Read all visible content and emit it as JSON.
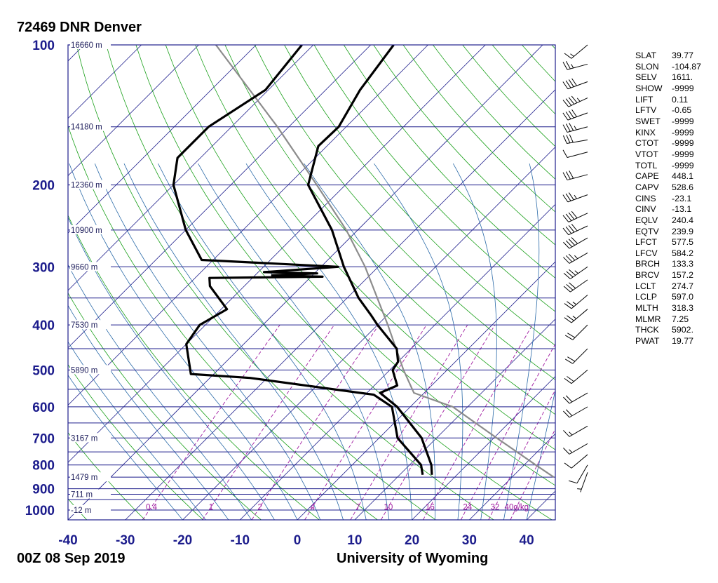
{
  "station_title": "72469 DNR Denver",
  "time_label": "00Z 08 Sep 2019",
  "credit": "University of Wyoming",
  "colors": {
    "axis_text": "#1c1c8c",
    "isobar": "#1e1e8c",
    "isotherm": "#1e1e8c",
    "dry_adiabat": "#1aa01a",
    "moist_adiabat": "#2a6aa8",
    "mixing_ratio": "#a01aa0",
    "sounding": "#000000",
    "parcel": "#8c8c8c"
  },
  "chart_data": {
    "type": "skew-t log-p sounding",
    "xlabel": "",
    "ylabel": "",
    "xlim": [
      -40,
      45
    ],
    "ylim_hPa": [
      1050,
      100
    ],
    "x_ticks": [
      "-40",
      "-30",
      "-20",
      "-10",
      "0",
      "10",
      "20",
      "30",
      "40"
    ],
    "pressure_ticks": [
      "100",
      "200",
      "300",
      "400",
      "500",
      "600",
      "700",
      "800",
      "900",
      "1000"
    ],
    "isobars_hPa": [
      100,
      150,
      200,
      250,
      300,
      350,
      400,
      450,
      500,
      550,
      600,
      650,
      700,
      750,
      800,
      850,
      900,
      925,
      950,
      1000
    ],
    "height_labels": [
      {
        "p": 100,
        "text": "16660 m"
      },
      {
        "p": 150,
        "text": "14180 m"
      },
      {
        "p": 200,
        "text": "12360 m"
      },
      {
        "p": 250,
        "text": "10900 m"
      },
      {
        "p": 300,
        "text": "9660 m"
      },
      {
        "p": 400,
        "text": "7530 m"
      },
      {
        "p": 500,
        "text": "5890 m"
      },
      {
        "p": 700,
        "text": "3167 m"
      },
      {
        "p": 850,
        "text": "1479 m"
      },
      {
        "p": 925,
        "text": "711 m"
      },
      {
        "p": 1000,
        "text": "-12 m"
      }
    ],
    "mixing_ratio_labels": [
      "0.4",
      "1",
      "2",
      "4",
      "7",
      "10",
      "16",
      "24",
      "32",
      "40g/kg"
    ],
    "temperature_profile": [
      {
        "p": 840,
        "t": 15.6
      },
      {
        "p": 800,
        "t": 13.8
      },
      {
        "p": 700,
        "t": 7.4
      },
      {
        "p": 600,
        "t": -2.3
      },
      {
        "p": 560,
        "t": -7.7
      },
      {
        "p": 540,
        "t": -6.0
      },
      {
        "p": 500,
        "t": -9.5
      },
      {
        "p": 480,
        "t": -10.0
      },
      {
        "p": 450,
        "t": -12.5
      },
      {
        "p": 400,
        "t": -20.0
      },
      {
        "p": 380,
        "t": -23.0
      },
      {
        "p": 350,
        "t": -28.0
      },
      {
        "p": 300,
        "t": -36.0
      },
      {
        "p": 250,
        "t": -44.5
      },
      {
        "p": 200,
        "t": -56.5
      },
      {
        "p": 165,
        "t": -61.5
      },
      {
        "p": 150,
        "t": -61.3
      },
      {
        "p": 125,
        "t": -64.0
      },
      {
        "p": 100,
        "t": -66.0
      }
    ],
    "dewpoint_profile": [
      {
        "p": 840,
        "td": 14.0
      },
      {
        "p": 800,
        "td": 12.0
      },
      {
        "p": 700,
        "td": 3.2
      },
      {
        "p": 600,
        "td": -3.2
      },
      {
        "p": 565,
        "td": -8.5
      },
      {
        "p": 520,
        "td": -33.0
      },
      {
        "p": 510,
        "td": -44.0
      },
      {
        "p": 440,
        "td": -50.0
      },
      {
        "p": 400,
        "td": -51.0
      },
      {
        "p": 370,
        "td": -49.0
      },
      {
        "p": 330,
        "td": -56.0
      },
      {
        "p": 317,
        "td": -57.5
      },
      {
        "p": 315,
        "td": -38.0
      },
      {
        "p": 313,
        "td": -47.0
      },
      {
        "p": 310,
        "td": -39.5
      },
      {
        "p": 308,
        "td": -49.0
      },
      {
        "p": 300,
        "td": -37.0
      },
      {
        "p": 290,
        "td": -62.0
      },
      {
        "p": 250,
        "td": -70.0
      },
      {
        "p": 200,
        "td": -80.0
      },
      {
        "p": 175,
        "td": -84.0
      },
      {
        "p": 150,
        "td": -84.0
      },
      {
        "p": 125,
        "td": -80.5
      },
      {
        "p": 100,
        "td": -82.0
      }
    ],
    "parcel_profile": [
      {
        "p": 850,
        "t": 37.3
      },
      {
        "p": 800,
        "t": 32.0
      },
      {
        "p": 700,
        "t": 20.5
      },
      {
        "p": 600,
        "t": 7.4
      },
      {
        "p": 560,
        "t": -1.8
      },
      {
        "p": 500,
        "t": -7.6
      },
      {
        "p": 400,
        "t": -18.2
      },
      {
        "p": 300,
        "t": -32.3
      },
      {
        "p": 250,
        "t": -42.0
      },
      {
        "p": 200,
        "t": -55.0
      },
      {
        "p": 150,
        "t": -72.0
      },
      {
        "p": 100,
        "t": -97.0
      }
    ],
    "wind_barbs_note": "wind barbs plotted along right side from surface to 100 hPa",
    "wind_barbs": [
      {
        "p": 830,
        "dir": 200,
        "kt": 5
      },
      {
        "p": 800,
        "dir": 210,
        "kt": 10
      },
      {
        "p": 760,
        "dir": 230,
        "kt": 10
      },
      {
        "p": 720,
        "dir": 240,
        "kt": 15
      },
      {
        "p": 660,
        "dir": 240,
        "kt": 15
      },
      {
        "p": 600,
        "dir": 240,
        "kt": 20
      },
      {
        "p": 560,
        "dir": 240,
        "kt": 20
      },
      {
        "p": 500,
        "dir": 230,
        "kt": 20
      },
      {
        "p": 450,
        "dir": 225,
        "kt": 20
      },
      {
        "p": 400,
        "dir": 225,
        "kt": 20
      },
      {
        "p": 370,
        "dir": 230,
        "kt": 25
      },
      {
        "p": 345,
        "dir": 230,
        "kt": 25
      },
      {
        "p": 320,
        "dir": 235,
        "kt": 30
      },
      {
        "p": 300,
        "dir": 235,
        "kt": 35
      },
      {
        "p": 280,
        "dir": 240,
        "kt": 35
      },
      {
        "p": 260,
        "dir": 240,
        "kt": 40
      },
      {
        "p": 245,
        "dir": 245,
        "kt": 40
      },
      {
        "p": 230,
        "dir": 245,
        "kt": 40
      },
      {
        "p": 210,
        "dir": 250,
        "kt": 35
      },
      {
        "p": 190,
        "dir": 255,
        "kt": 30
      },
      {
        "p": 170,
        "dir": 255,
        "kt": 10
      },
      {
        "p": 160,
        "dir": 260,
        "kt": 30
      },
      {
        "p": 150,
        "dir": 255,
        "kt": 35
      },
      {
        "p": 140,
        "dir": 250,
        "kt": 40
      },
      {
        "p": 130,
        "dir": 245,
        "kt": 45
      },
      {
        "p": 120,
        "dir": 250,
        "kt": 40
      },
      {
        "p": 110,
        "dir": 255,
        "kt": 25
      },
      {
        "p": 100,
        "dir": 230,
        "kt": 15
      }
    ]
  },
  "indices": [
    {
      "key": "SLAT",
      "value": "39.77"
    },
    {
      "key": "SLON",
      "value": "-104.87"
    },
    {
      "key": "SELV",
      "value": "1611."
    },
    {
      "key": "SHOW",
      "value": "-9999"
    },
    {
      "key": "LIFT",
      "value": "0.11"
    },
    {
      "key": "LFTV",
      "value": "-0.65"
    },
    {
      "key": "SWET",
      "value": "-9999"
    },
    {
      "key": "KINX",
      "value": "-9999"
    },
    {
      "key": "CTOT",
      "value": "-9999"
    },
    {
      "key": "VTOT",
      "value": "-9999"
    },
    {
      "key": "TOTL",
      "value": "-9999"
    },
    {
      "key": "CAPE",
      "value": "448.1"
    },
    {
      "key": "CAPV",
      "value": "528.6"
    },
    {
      "key": "CINS",
      "value": "-23.1"
    },
    {
      "key": "CINV",
      "value": "-13.1"
    },
    {
      "key": "EQLV",
      "value": "240.4"
    },
    {
      "key": "EQTV",
      "value": "239.9"
    },
    {
      "key": "LFCT",
      "value": "577.5"
    },
    {
      "key": "LFCV",
      "value": "584.2"
    },
    {
      "key": "BRCH",
      "value": "133.3"
    },
    {
      "key": "BRCV",
      "value": "157.2"
    },
    {
      "key": "LCLT",
      "value": "274.7"
    },
    {
      "key": "LCLP",
      "value": "597.0"
    },
    {
      "key": "MLTH",
      "value": "318.3"
    },
    {
      "key": "MLMR",
      "value": "7.25"
    },
    {
      "key": "THCK",
      "value": "5902."
    },
    {
      "key": "PWAT",
      "value": "19.77"
    }
  ]
}
